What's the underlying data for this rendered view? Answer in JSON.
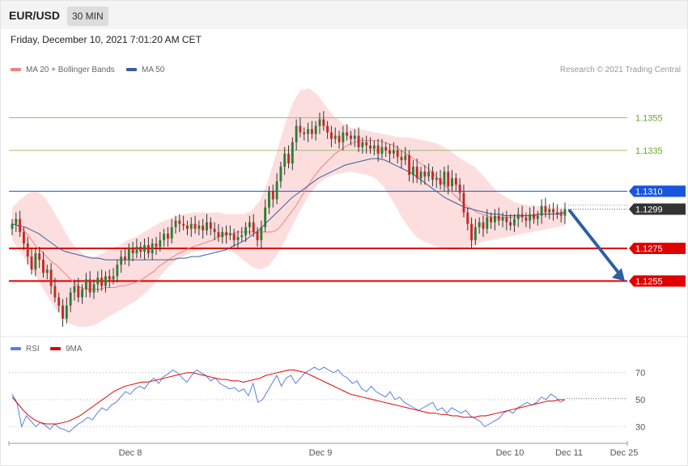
{
  "header": {
    "symbol": "EUR/USD",
    "timeframe": "30 MIN"
  },
  "timestamp": "Friday, December 10, 2021 7:01:20 AM CET",
  "legend": {
    "ma20_bb": {
      "label": "MA 20 + Bollinger Bands",
      "color": "#f08080"
    },
    "ma50": {
      "label": "MA 50",
      "color": "#3a5f9e"
    },
    "rsi": {
      "label": "RSI",
      "color": "#5b7fdc"
    },
    "rsi_ma": {
      "label": "9MA",
      "color": "#e00000"
    }
  },
  "credit": "Research © 2021 Trading Central",
  "colors": {
    "bull": "#2e7d32",
    "bear": "#c62828",
    "resistance": "#9bbf6a",
    "current": "#1a56db",
    "support": "#e00000",
    "last": "#333333",
    "band": "#fddede"
  },
  "chart_data": [
    {
      "type": "candlestick",
      "panel": "price",
      "ylim": [
        1.1223,
        1.138
      ],
      "x_tick_labels": [
        "Dec 8",
        "Dec 9",
        "Dec 10",
        "Dec 11",
        "Dec 25"
      ],
      "levels": [
        {
          "label": "1.1355",
          "value": 1.1355,
          "kind": "resistance"
        },
        {
          "label": "1.1335",
          "value": 1.1335,
          "kind": "resistance"
        },
        {
          "label": "1.1310",
          "value": 1.131,
          "kind": "current"
        },
        {
          "label": "1.1299",
          "value": 1.1299,
          "kind": "last"
        },
        {
          "label": "1.1275",
          "value": 1.1275,
          "kind": "support"
        },
        {
          "label": "1.1255",
          "value": 1.1255,
          "kind": "support"
        }
      ],
      "forecast": {
        "from": 1.1298,
        "to": 1.1255,
        "direction": "down"
      },
      "close": [
        1.129,
        1.1293,
        1.1285,
        1.1278,
        1.127,
        1.1262,
        1.1272,
        1.1268,
        1.126,
        1.1262,
        1.1252,
        1.1245,
        1.124,
        1.1232,
        1.124,
        1.1248,
        1.1252,
        1.1245,
        1.125,
        1.1256,
        1.1248,
        1.1253,
        1.1257,
        1.1252,
        1.1258,
        1.1256,
        1.1258,
        1.1265,
        1.127,
        1.1268,
        1.1275,
        1.1272,
        1.1276,
        1.1273,
        1.1277,
        1.1272,
        1.1278,
        1.1276,
        1.128,
        1.1284,
        1.1281,
        1.1288,
        1.1292,
        1.129,
        1.1289,
        1.1287,
        1.129,
        1.1287,
        1.1289,
        1.1286,
        1.1291,
        1.1287,
        1.1285,
        1.1282,
        1.1285,
        1.1283,
        1.1284,
        1.128,
        1.1282,
        1.1283,
        1.1288,
        1.1291,
        1.1285,
        1.128,
        1.1288,
        1.13,
        1.131,
        1.1305,
        1.1316,
        1.1325,
        1.1333,
        1.1327,
        1.134,
        1.135,
        1.1346,
        1.1345,
        1.1348,
        1.1345,
        1.135,
        1.1354,
        1.135,
        1.1346,
        1.1342,
        1.1344,
        1.134,
        1.1346,
        1.1344,
        1.1342,
        1.1344,
        1.1337,
        1.134,
        1.1338,
        1.1336,
        1.1338,
        1.1333,
        1.1337,
        1.1335,
        1.1333,
        1.1335,
        1.1331,
        1.1329,
        1.1332,
        1.132,
        1.1325,
        1.1318,
        1.1322,
        1.1319,
        1.1322,
        1.1317,
        1.1318,
        1.1314,
        1.1322,
        1.1313,
        1.1318,
        1.1314,
        1.1309,
        1.1297,
        1.129,
        1.128,
        1.1288,
        1.1291,
        1.1287,
        1.1294,
        1.1291,
        1.1295,
        1.1292,
        1.1294,
        1.1291,
        1.1289,
        1.1293,
        1.1296,
        1.1294,
        1.1292,
        1.1296,
        1.1293,
        1.1295,
        1.1301,
        1.1297,
        1.1299,
        1.1297,
        1.1296,
        1.1295,
        1.1299
      ],
      "ma20": [
        1.129,
        1.1289,
        1.1287,
        1.1284,
        1.128,
        1.1276,
        1.1273,
        1.127,
        1.1267,
        1.1265,
        1.1262,
        1.1259,
        1.1256,
        1.1253,
        1.1251,
        1.125,
        1.125,
        1.125,
        1.125,
        1.1251,
        1.1251,
        1.1251,
        1.1252,
        1.1252,
        1.1253,
        1.1254,
        1.1255,
        1.1257,
        1.1259,
        1.1261,
        1.1264,
        1.1266,
        1.1268,
        1.127,
        1.1272,
        1.1273,
        1.1275,
        1.1276,
        1.1277,
        1.1278,
        1.1279,
        1.128,
        1.1282,
        1.1283,
        1.1284,
        1.1284,
        1.1285,
        1.1285,
        1.1285,
        1.1285,
        1.1285,
        1.1285,
        1.1285,
        1.1285,
        1.1286,
        1.1289,
        1.1293,
        1.1297,
        1.1301,
        1.1306,
        1.1311,
        1.1316,
        1.132,
        1.1324,
        1.1327,
        1.133,
        1.1333,
        1.1335,
        1.1337,
        1.1339,
        1.134,
        1.1341,
        1.1341,
        1.1341,
        1.1341,
        1.1341,
        1.134,
        1.1339,
        1.1338,
        1.1336,
        1.1334,
        1.1332,
        1.133,
        1.1328,
        1.1326,
        1.1324,
        1.1321,
        1.1318,
        1.1315,
        1.1312,
        1.1309,
        1.1306,
        1.1303,
        1.1301,
        1.1299,
        1.1297,
        1.1296,
        1.1295,
        1.1294,
        1.1294,
        1.1294,
        1.1294,
        1.1294,
        1.1294,
        1.1295,
        1.1295,
        1.1295,
        1.1295,
        1.1296,
        1.1296,
        1.1296,
        1.1296,
        1.1297,
        1.1297
      ],
      "ma50": [
        1.129,
        1.1289,
        1.1288,
        1.1286,
        1.1284,
        1.1281,
        1.1278,
        1.1275,
        1.1273,
        1.1272,
        1.1271,
        1.127,
        1.1269,
        1.1269,
        1.1268,
        1.1268,
        1.1268,
        1.1268,
        1.1268,
        1.1268,
        1.1268,
        1.1268,
        1.1268,
        1.1268,
        1.1268,
        1.1269,
        1.1269,
        1.127,
        1.127,
        1.1271,
        1.1272,
        1.1273,
        1.1274,
        1.1276,
        1.1278,
        1.128,
        1.1283,
        1.1286,
        1.129,
        1.1294,
        1.1298,
        1.1302,
        1.1306,
        1.1309,
        1.1312,
        1.1315,
        1.1318,
        1.132,
        1.1322,
        1.1324,
        1.1326,
        1.1327,
        1.1328,
        1.1329,
        1.133,
        1.133,
        1.1329,
        1.1327,
        1.1325,
        1.1323,
        1.1321,
        1.1318,
        1.1315,
        1.1312,
        1.1309,
        1.1306,
        1.1304,
        1.1302,
        1.13,
        1.1299,
        1.1298,
        1.1297,
        1.1296,
        1.1296,
        1.1295,
        1.1295,
        1.1295,
        1.1295,
        1.1295,
        1.1296,
        1.1296,
        1.1296,
        1.1296,
        1.1297
      ],
      "bollinger_upper": [
        1.13,
        1.1305,
        1.1309,
        1.131,
        1.1306,
        1.1298,
        1.1289,
        1.128,
        1.1274,
        1.127,
        1.127,
        1.1272,
        1.1275,
        1.1277,
        1.128,
        1.1282,
        1.1285,
        1.1288,
        1.1291,
        1.1293,
        1.1295,
        1.1296,
        1.1297,
        1.1297,
        1.1297,
        1.1297,
        1.1296,
        1.1296,
        1.1296,
        1.1298,
        1.1304,
        1.1316,
        1.1333,
        1.135,
        1.1364,
        1.1372,
        1.1373,
        1.1369,
        1.1362,
        1.1356,
        1.1352,
        1.1349,
        1.1348,
        1.1347,
        1.1346,
        1.1345,
        1.1344,
        1.1343,
        1.1343,
        1.1342,
        1.1341,
        1.134,
        1.1338,
        1.1335,
        1.1331,
        1.1328,
        1.1325,
        1.132,
        1.1314,
        1.1309,
        1.1306,
        1.1303,
        1.1302,
        1.1301,
        1.1301,
        1.13,
        1.13,
        1.13
      ],
      "bollinger_lower": [
        1.128,
        1.1273,
        1.1265,
        1.1257,
        1.1248,
        1.124,
        1.1233,
        1.1229,
        1.1227,
        1.1227,
        1.1228,
        1.1231,
        1.1234,
        1.1237,
        1.124,
        1.1243,
        1.1247,
        1.1252,
        1.1258,
        1.1264,
        1.1268,
        1.1271,
        1.1273,
        1.1274,
        1.1275,
        1.1275,
        1.1274,
        1.1272,
        1.1268,
        1.1264,
        1.1262,
        1.1264,
        1.127,
        1.1279,
        1.1289,
        1.1299,
        1.1308,
        1.1314,
        1.1318,
        1.132,
        1.1321,
        1.1322,
        1.1321,
        1.132,
        1.1318,
        1.1313,
        1.1305,
        1.1296,
        1.1288,
        1.1282,
        1.1279,
        1.1277,
        1.1275,
        1.1274,
        1.1274,
        1.1275,
        1.1277,
        1.1279,
        1.128,
        1.1281,
        1.1282,
        1.1283,
        1.1284,
        1.1285,
        1.1286,
        1.1287,
        1.1288,
        1.1289
      ]
    },
    {
      "type": "line",
      "panel": "rsi",
      "ylim": [
        20,
        80
      ],
      "y_ticks": [
        "70",
        "50",
        "30"
      ],
      "series": [
        {
          "name": "RSI",
          "values": [
            54,
            48,
            30,
            38,
            34,
            30,
            33,
            31,
            28,
            32,
            29,
            28,
            26,
            29,
            32,
            34,
            37,
            35,
            40,
            44,
            42,
            46,
            48,
            52,
            56,
            54,
            58,
            60,
            58,
            63,
            66,
            62,
            67,
            69,
            72,
            70,
            66,
            63,
            68,
            72,
            70,
            68,
            64,
            66,
            62,
            60,
            58,
            59,
            56,
            58,
            53,
            62,
            48,
            50,
            56,
            62,
            68,
            60,
            66,
            68,
            62,
            66,
            70,
            72,
            74,
            72,
            74,
            72,
            70,
            72,
            68,
            66,
            62,
            64,
            58,
            56,
            60,
            56,
            54,
            52,
            56,
            50,
            52,
            48,
            46,
            44,
            42,
            44,
            46,
            48,
            42,
            44,
            40,
            44,
            42,
            40,
            42,
            38,
            36,
            34,
            30,
            32,
            34,
            36,
            40,
            42,
            40,
            44,
            46,
            48,
            46,
            48,
            52,
            50,
            54,
            52,
            48,
            50
          ]
        },
        {
          "name": "9MA",
          "values": [
            52,
            47,
            42,
            38,
            35,
            33,
            32,
            32,
            32,
            33,
            34,
            36,
            38,
            41,
            44,
            47,
            50,
            53,
            56,
            58,
            60,
            61,
            62,
            63,
            63,
            64,
            65,
            66,
            67,
            68,
            69,
            70,
            70,
            69,
            68,
            67,
            66,
            65,
            65,
            64,
            64,
            63,
            64,
            65,
            66,
            68,
            69,
            70,
            71,
            72,
            72,
            71,
            70,
            68,
            66,
            64,
            62,
            60,
            58,
            56,
            54,
            53,
            52,
            51,
            50,
            49,
            48,
            47,
            46,
            45,
            44,
            43,
            42,
            41,
            40,
            40,
            39,
            39,
            38,
            38,
            37,
            37,
            37,
            38,
            38,
            39,
            40,
            41,
            42,
            43,
            44,
            45,
            46,
            47,
            48,
            49,
            49,
            50,
            50
          ]
        }
      ]
    }
  ]
}
